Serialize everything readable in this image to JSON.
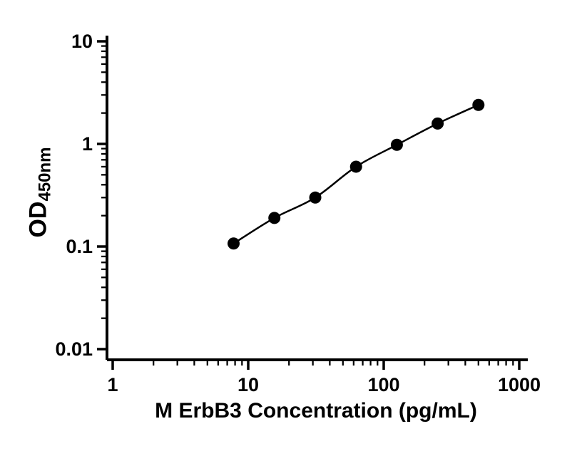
{
  "figure": {
    "background": "#ffffff"
  },
  "chart_data": {
    "type": "scatter",
    "title": "",
    "xlabel": "M ErbB3 Concentration (pg/mL)",
    "ylabel": "OD450nm",
    "ylabel_main": "OD",
    "ylabel_sub": "450nm",
    "x_scale": "log",
    "y_scale": "log",
    "xlim": [
      1,
      1000
    ],
    "ylim": [
      0.01,
      10
    ],
    "x_ticks": [
      "1",
      "10",
      "100",
      "1000"
    ],
    "y_ticks": [
      "0.01",
      "0.1",
      "1",
      "10"
    ],
    "grid": false,
    "legend": false,
    "series": [
      {
        "marker": "circle",
        "color": "#000000",
        "points": [
          {
            "x": 7.8,
            "y": 0.107
          },
          {
            "x": 15.6,
            "y": 0.19
          },
          {
            "x": 31.25,
            "y": 0.3
          },
          {
            "x": 62.5,
            "y": 0.6
          },
          {
            "x": 125,
            "y": 0.98
          },
          {
            "x": 250,
            "y": 1.58
          },
          {
            "x": 500,
            "y": 2.4
          }
        ]
      }
    ],
    "colors": {
      "axis": "#000000",
      "line": "#000000",
      "marker": "#000000"
    },
    "marker_radius": 8.5
  }
}
